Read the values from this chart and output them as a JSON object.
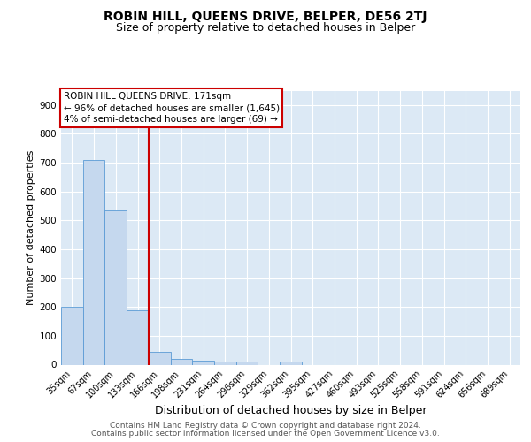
{
  "title": "ROBIN HILL, QUEENS DRIVE, BELPER, DE56 2TJ",
  "subtitle": "Size of property relative to detached houses in Belper",
  "xlabel": "Distribution of detached houses by size in Belper",
  "ylabel": "Number of detached properties",
  "categories": [
    "35sqm",
    "67sqm",
    "100sqm",
    "133sqm",
    "166sqm",
    "198sqm",
    "231sqm",
    "264sqm",
    "296sqm",
    "329sqm",
    "362sqm",
    "395sqm",
    "427sqm",
    "460sqm",
    "493sqm",
    "525sqm",
    "558sqm",
    "591sqm",
    "624sqm",
    "656sqm",
    "689sqm"
  ],
  "values": [
    200,
    710,
    535,
    190,
    45,
    20,
    15,
    12,
    10,
    0,
    10,
    0,
    0,
    0,
    0,
    0,
    0,
    0,
    0,
    0,
    0
  ],
  "bar_color": "#c5d8ee",
  "bar_edge_color": "#5b9bd5",
  "red_line_after_index": 4,
  "highlight_line_color": "#cc0000",
  "annotation_text": "ROBIN HILL QUEENS DRIVE: 171sqm\n← 96% of detached houses are smaller (1,645)\n4% of semi-detached houses are larger (69) →",
  "annotation_box_facecolor": "#ffffff",
  "annotation_border_color": "#cc0000",
  "ylim": [
    0,
    950
  ],
  "yticks": [
    0,
    100,
    200,
    300,
    400,
    500,
    600,
    700,
    800,
    900
  ],
  "footer_line1": "Contains HM Land Registry data © Crown copyright and database right 2024.",
  "footer_line2": "Contains public sector information licensed under the Open Government Licence v3.0.",
  "bg_color": "#dce9f5",
  "fig_bg": "#ffffff",
  "title_fontsize": 10,
  "subtitle_fontsize": 9,
  "tick_fontsize": 7,
  "ylabel_fontsize": 8,
  "xlabel_fontsize": 9,
  "annot_fontsize": 7.5,
  "footer_fontsize": 6.5
}
